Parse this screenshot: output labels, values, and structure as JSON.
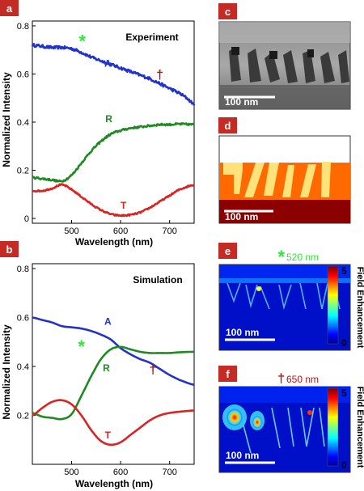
{
  "figure": {
    "panels": [
      {
        "letter": "a"
      },
      {
        "letter": "b"
      },
      {
        "letter": "c"
      },
      {
        "letter": "d"
      },
      {
        "letter": "e"
      },
      {
        "letter": "f"
      }
    ],
    "markers": {
      "star": {
        "text": "*",
        "color": "#2ee83a"
      },
      "dagger": {
        "text": "†",
        "color": "#b31414"
      }
    },
    "scale_bar_label": "100 nm",
    "colorbars": [
      {
        "panel": "e",
        "label": "Field Enhancement",
        "max_label": "5",
        "min_label": "0",
        "marker": "*",
        "marker_text": "520 nm",
        "marker_color": "#2ee83a"
      },
      {
        "panel": "f",
        "label": "Field Enhancement",
        "max_label": "5",
        "min_label": "0",
        "marker": "†",
        "marker_text": "650 nm",
        "marker_color": "#b31414"
      }
    ]
  },
  "chart_data": [
    {
      "type": "line",
      "panel": "a",
      "title": "Experiment",
      "xlabel": "Wavelength (nm)",
      "ylabel": "Normalized Intensity",
      "xlim": [
        420,
        750
      ],
      "ylim": [
        -0.02,
        0.82
      ],
      "xticks": [
        500,
        600,
        700
      ],
      "xtick_labels": [
        "500",
        "600",
        "700"
      ],
      "yticks": [
        0,
        0.2,
        0.4,
        0.6,
        0.8
      ],
      "ytick_labels": [
        "0",
        "0.2",
        "0.4",
        "0.6",
        "0.8"
      ],
      "series": [
        {
          "name": "A",
          "color": "#2233cc",
          "noise": 0.006,
          "x": [
            420,
            440,
            460,
            480,
            500,
            520,
            540,
            560,
            580,
            600,
            620,
            640,
            660,
            680,
            700,
            720,
            735,
            750
          ],
          "y": [
            0.72,
            0.715,
            0.71,
            0.71,
            0.705,
            0.69,
            0.67,
            0.655,
            0.64,
            0.625,
            0.61,
            0.595,
            0.58,
            0.56,
            0.54,
            0.52,
            0.5,
            0.475
          ]
        },
        {
          "name": "R",
          "color": "#1f8a22",
          "noise": 0.004,
          "x": [
            420,
            440,
            460,
            480,
            500,
            520,
            540,
            560,
            580,
            600,
            620,
            640,
            660,
            680,
            700,
            720,
            750
          ],
          "y": [
            0.17,
            0.165,
            0.16,
            0.155,
            0.18,
            0.23,
            0.28,
            0.32,
            0.35,
            0.365,
            0.375,
            0.38,
            0.385,
            0.39,
            0.39,
            0.392,
            0.39
          ]
        },
        {
          "name": "T",
          "color": "#dd2222",
          "noise": 0.003,
          "x": [
            420,
            440,
            460,
            480,
            500,
            520,
            540,
            560,
            580,
            600,
            620,
            640,
            660,
            680,
            700,
            720,
            750
          ],
          "y": [
            0.115,
            0.115,
            0.125,
            0.14,
            0.12,
            0.09,
            0.06,
            0.035,
            0.018,
            0.012,
            0.015,
            0.025,
            0.045,
            0.07,
            0.095,
            0.12,
            0.14
          ]
        }
      ],
      "labels": [
        {
          "text": "A",
          "x": 574,
          "y": 0.63,
          "color": "#2233cc"
        },
        {
          "text": "R",
          "x": 576,
          "y": 0.4,
          "color": "#1f8a22"
        },
        {
          "text": "T",
          "x": 606,
          "y": 0.04,
          "color": "#dd2222"
        }
      ],
      "markers": [
        {
          "symbol": "*",
          "x": 522,
          "y": 0.745,
          "color": "#2ee83a"
        },
        {
          "symbol": "†",
          "x": 680,
          "y": 0.58,
          "color": "#b31414"
        }
      ]
    },
    {
      "type": "line",
      "panel": "b",
      "title": "Simulation",
      "xlabel": "Wavelength (nm)",
      "ylabel": "Normalized Intensity",
      "xlim": [
        420,
        750
      ],
      "ylim": [
        0,
        0.82
      ],
      "xticks": [
        500,
        600,
        700
      ],
      "xtick_labels": [
        "500",
        "600",
        "700"
      ],
      "yticks": [
        0.2,
        0.4,
        0.6,
        0.8
      ],
      "ytick_labels": [
        "0.2",
        "0.4",
        "0.6",
        "0.8"
      ],
      "series": [
        {
          "name": "A",
          "color": "#2233cc",
          "noise": 0,
          "x": [
            420,
            440,
            460,
            480,
            500,
            520,
            540,
            560,
            580,
            600,
            620,
            640,
            660,
            680,
            700,
            720,
            750
          ],
          "y": [
            0.6,
            0.59,
            0.58,
            0.565,
            0.56,
            0.555,
            0.545,
            0.53,
            0.51,
            0.475,
            0.45,
            0.43,
            0.415,
            0.39,
            0.365,
            0.345,
            0.325
          ]
        },
        {
          "name": "R",
          "color": "#1f8a22",
          "noise": 0,
          "x": [
            420,
            440,
            460,
            480,
            500,
            520,
            540,
            560,
            580,
            600,
            620,
            640,
            660,
            680,
            700,
            720,
            750
          ],
          "y": [
            0.21,
            0.195,
            0.19,
            0.185,
            0.205,
            0.28,
            0.36,
            0.43,
            0.47,
            0.48,
            0.47,
            0.46,
            0.455,
            0.455,
            0.455,
            0.458,
            0.46
          ]
        },
        {
          "name": "T",
          "color": "#dd2222",
          "noise": 0,
          "x": [
            420,
            440,
            460,
            480,
            500,
            520,
            540,
            560,
            580,
            600,
            620,
            640,
            660,
            680,
            700,
            720,
            750
          ],
          "y": [
            0.2,
            0.23,
            0.255,
            0.262,
            0.245,
            0.2,
            0.14,
            0.095,
            0.08,
            0.09,
            0.12,
            0.15,
            0.18,
            0.2,
            0.21,
            0.215,
            0.22
          ]
        }
      ],
      "labels": [
        {
          "text": "A",
          "x": 574,
          "y": 0.57,
          "color": "#2233cc"
        },
        {
          "text": "R",
          "x": 571,
          "y": 0.38,
          "color": "#1f8a22"
        },
        {
          "text": "T",
          "x": 574,
          "y": 0.105,
          "color": "#dd2222"
        }
      ],
      "markers": [
        {
          "symbol": "*",
          "x": 520,
          "y": 0.49,
          "color": "#2ee83a"
        },
        {
          "symbol": "†",
          "x": 666,
          "y": 0.37,
          "color": "#b31414"
        }
      ]
    }
  ]
}
